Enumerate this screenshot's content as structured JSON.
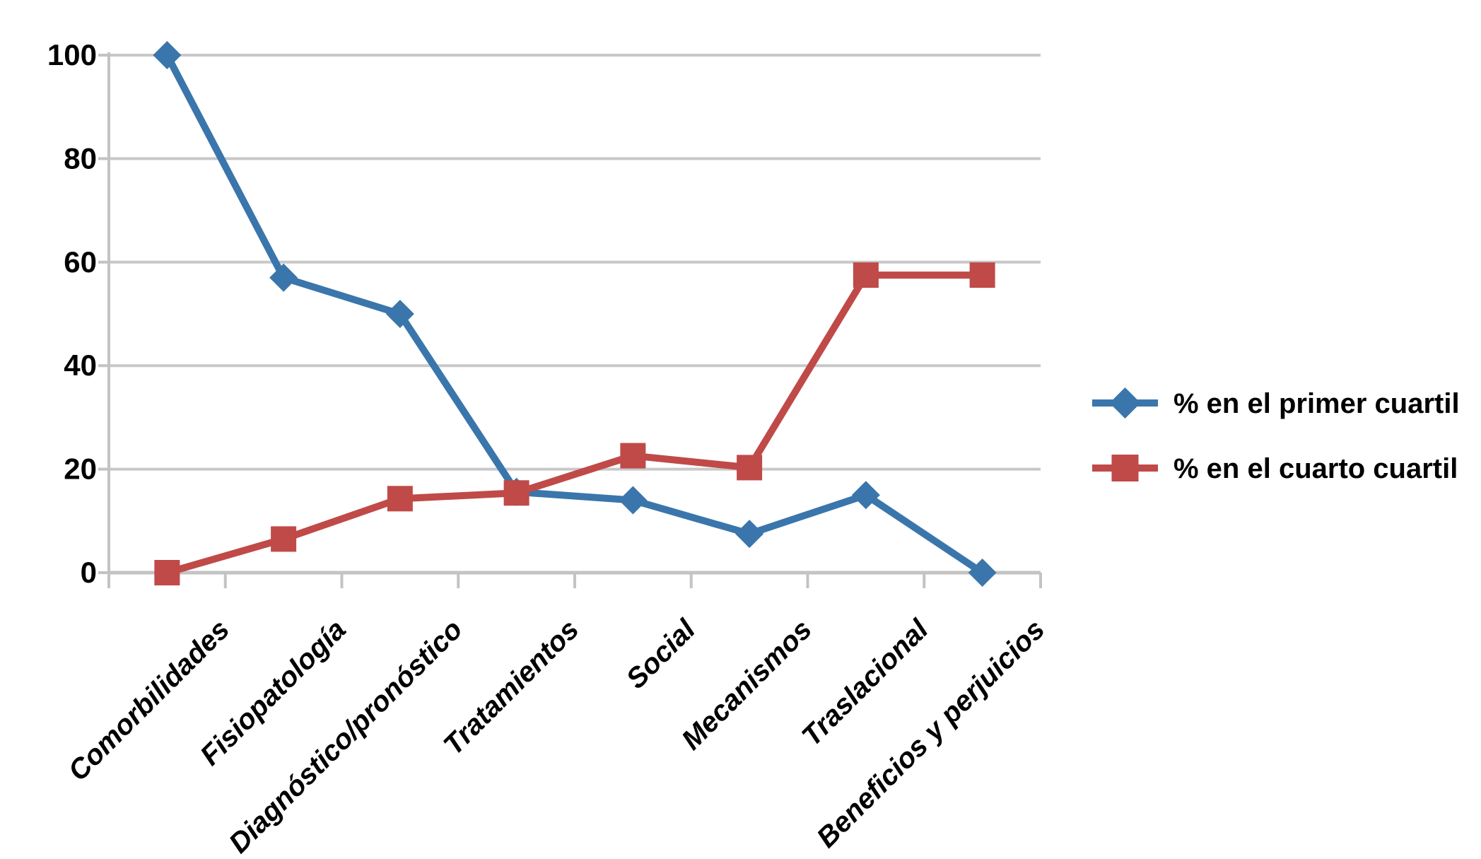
{
  "chart_data": {
    "type": "line",
    "title": "",
    "xlabel": "",
    "ylabel": "",
    "categories": [
      "Comorbilidades",
      "Fisiopatología",
      "Diagnóstico/pronóstico",
      "Tratamientos",
      "Social",
      "Mecanismos",
      "Traslacional",
      "Beneficios y perjuicios"
    ],
    "series": [
      {
        "name": "% en el primer cuartil",
        "marker": "diamond",
        "color": "#3A76AB",
        "values": [
          100,
          57,
          50,
          15.6,
          14,
          7.5,
          15,
          0
        ]
      },
      {
        "name": "% en el cuarto cuartil",
        "marker": "square",
        "color": "#BF4A48",
        "values": [
          0,
          6.5,
          14.3,
          15.4,
          22.6,
          20.3,
          57.5,
          57.5
        ]
      }
    ],
    "y_ticks": [
      0,
      20,
      40,
      60,
      80,
      100
    ],
    "ylim": [
      0,
      100
    ],
    "grid": "horizontal",
    "gridline_color": "#C9C8C8",
    "axis_color": "#C4C3C3",
    "text_color": "#000000",
    "background_color": "#FFFFFF",
    "legend_position": "right"
  }
}
